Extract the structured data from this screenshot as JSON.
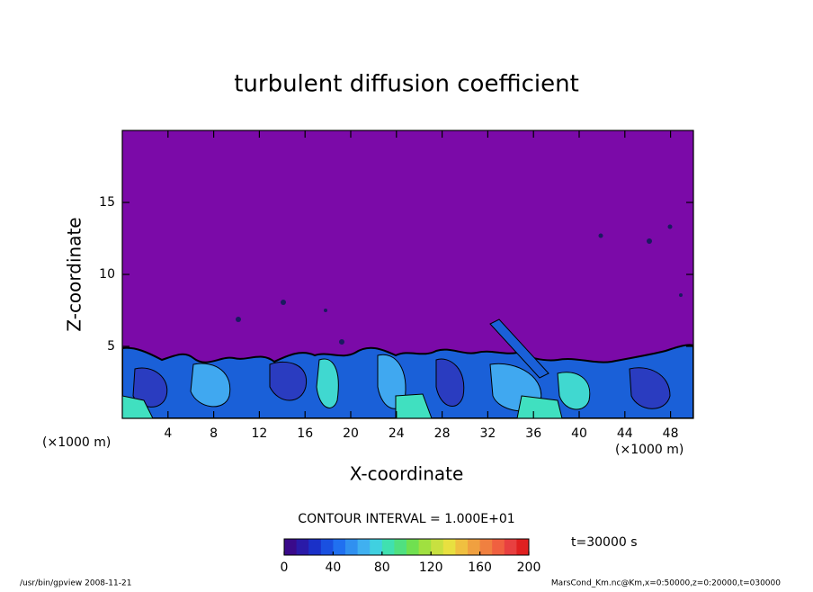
{
  "chart_data": {
    "type": "contour",
    "title": "turbulent diffusion coefficient",
    "xlabel": "X-coordinate",
    "ylabel": "Z-coordinate",
    "x_unit_label": "(×1000 m)",
    "xlim": [
      0,
      50
    ],
    "ylim": [
      0,
      20
    ],
    "xticks": [
      4,
      8,
      12,
      16,
      20,
      24,
      28,
      32,
      36,
      40,
      44,
      48
    ],
    "yticks": [
      5,
      10,
      15
    ],
    "background_color": "#7b0aa8",
    "contour_interval_label": "CONTOUR INTERVAL = 1.000E+01",
    "time_label": "t=30000 s",
    "colorbar": {
      "lim": [
        0,
        200
      ],
      "ticks": [
        0,
        40,
        80,
        120,
        160,
        200
      ],
      "colors": [
        "#3a0a8a",
        "#2a1aa8",
        "#1a30c8",
        "#1a50e0",
        "#2070f0",
        "#3090f0",
        "#40b0f0",
        "#40d0e0",
        "#40e0b0",
        "#50e080",
        "#70e050",
        "#a0e040",
        "#c8e040",
        "#e8e040",
        "#f0c040",
        "#f0a040",
        "#f08040",
        "#f06040",
        "#e84040",
        "#e02020"
      ]
    },
    "footer_left": "/usr/bin/gpview   2008-11-21",
    "footer_right": "MarsCond_Km.nc@Km,x=0:50000,z=0:20000,t=030000"
  }
}
